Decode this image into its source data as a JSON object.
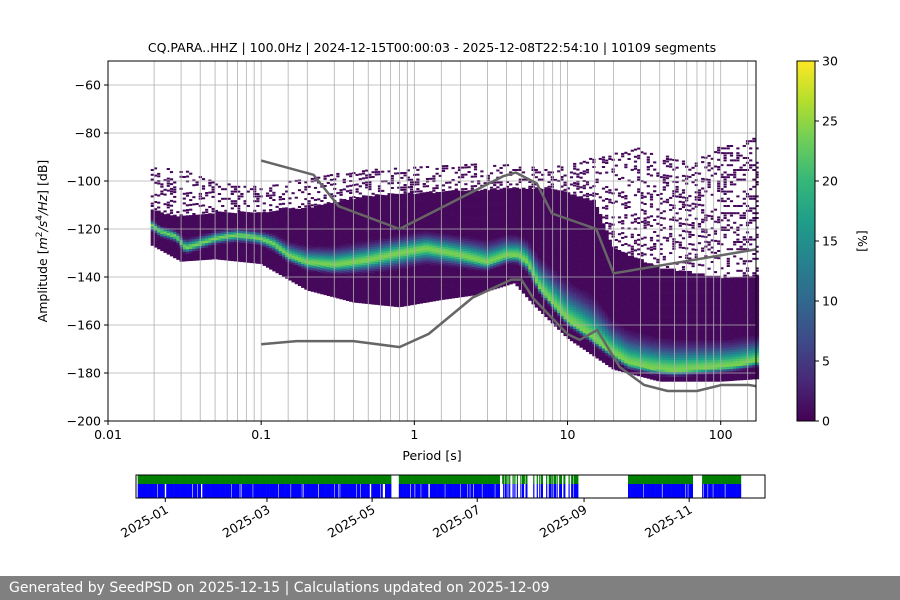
{
  "chart_data": {
    "type": "heatmap",
    "title": "CQ.PARA..HHZ | 100.0Hz | 2024-12-15T00:00:03 - 2025-12-08T22:54:10 | 10109 segments",
    "xlabel": "Period [s]",
    "ylabel_parts": [
      "Amplitude [",
      "m",
      "2",
      "/s",
      "4",
      "/Hz",
      "] [dB]"
    ],
    "xscale": "log",
    "xlim": [
      0.01,
      170
    ],
    "ylim": [
      -200,
      -50
    ],
    "x_ticks": [
      {
        "v": 0.01,
        "label": "0.01"
      },
      {
        "v": 0.1,
        "label": "0.1"
      },
      {
        "v": 1,
        "label": "1"
      },
      {
        "v": 10,
        "label": "10"
      },
      {
        "v": 100,
        "label": "100"
      }
    ],
    "y_ticks": [
      -60,
      -80,
      -100,
      -120,
      -140,
      -160,
      -180,
      -200
    ],
    "period_gridlines": [
      0.02,
      0.03,
      0.04,
      0.05,
      0.06,
      0.07,
      0.08,
      0.09,
      0.1,
      0.15,
      0.2,
      0.3,
      0.4,
      0.5,
      0.6,
      0.7,
      0.8,
      0.9,
      1,
      1.5,
      2,
      3,
      4,
      5,
      6,
      7,
      8,
      9,
      10,
      15,
      20,
      30,
      40,
      50,
      60,
      70,
      80,
      90,
      100,
      150
    ],
    "colorbar": {
      "label": "[%]",
      "min": 0,
      "max": 30,
      "ticks": [
        0,
        5,
        10,
        15,
        20,
        25,
        30
      ],
      "colormap": "viridis"
    },
    "mode_curve": [
      [
        0.019,
        -118
      ],
      [
        0.022,
        -121
      ],
      [
        0.025,
        -122
      ],
      [
        0.028,
        -123
      ],
      [
        0.032,
        -128
      ],
      [
        0.036,
        -127
      ],
      [
        0.04,
        -126
      ],
      [
        0.05,
        -124
      ],
      [
        0.06,
        -123
      ],
      [
        0.07,
        -122.5
      ],
      [
        0.085,
        -123
      ],
      [
        0.1,
        -124
      ],
      [
        0.12,
        -126
      ],
      [
        0.15,
        -131
      ],
      [
        0.2,
        -134
      ],
      [
        0.3,
        -135
      ],
      [
        0.5,
        -133
      ],
      [
        0.8,
        -130
      ],
      [
        1.2,
        -128
      ],
      [
        2,
        -131
      ],
      [
        3,
        -134
      ],
      [
        4,
        -131
      ],
      [
        4.8,
        -131
      ],
      [
        5.5,
        -134
      ],
      [
        6.5,
        -144
      ],
      [
        8,
        -151
      ],
      [
        10,
        -158
      ],
      [
        13,
        -163
      ],
      [
        18,
        -170
      ],
      [
        25,
        -176
      ],
      [
        35,
        -178
      ],
      [
        50,
        -179
      ],
      [
        80,
        -178
      ],
      [
        120,
        -177
      ],
      [
        170,
        -175
      ]
    ],
    "spread_lower": [
      [
        0.019,
        -126
      ],
      [
        0.03,
        -133
      ],
      [
        0.05,
        -132
      ],
      [
        0.1,
        -134
      ],
      [
        0.2,
        -145
      ],
      [
        0.4,
        -150
      ],
      [
        0.8,
        -152
      ],
      [
        1.5,
        -149
      ],
      [
        2.5,
        -147
      ],
      [
        4.5,
        -142
      ],
      [
        6,
        -151
      ],
      [
        10,
        -165
      ],
      [
        20,
        -178
      ],
      [
        40,
        -183
      ],
      [
        100,
        -183
      ],
      [
        170,
        -182
      ]
    ],
    "spread_upper": [
      [
        0.019,
        -112
      ],
      [
        0.03,
        -115
      ],
      [
        0.05,
        -113
      ],
      [
        0.1,
        -113
      ],
      [
        0.2,
        -111
      ],
      [
        0.5,
        -106
      ],
      [
        1,
        -105
      ],
      [
        2,
        -104
      ],
      [
        4,
        -103
      ],
      [
        5,
        -103
      ],
      [
        8,
        -103
      ],
      [
        15,
        -108
      ],
      [
        20,
        -128
      ],
      [
        40,
        -136
      ],
      [
        100,
        -140
      ],
      [
        170,
        -140
      ]
    ],
    "outlier_upper": [
      [
        0.019,
        -93
      ],
      [
        0.03,
        -95
      ],
      [
        0.05,
        -100
      ],
      [
        0.1,
        -102
      ],
      [
        0.2,
        -98
      ],
      [
        0.5,
        -95
      ],
      [
        1,
        -93
      ],
      [
        3,
        -92
      ],
      [
        6,
        -94
      ],
      [
        10,
        -92
      ],
      [
        20,
        -88
      ],
      [
        30,
        -85
      ],
      [
        60,
        -92
      ],
      [
        100,
        -85
      ],
      [
        170,
        -80
      ]
    ],
    "nhnm": [
      [
        0.1,
        -91.5
      ],
      [
        0.22,
        -97.4
      ],
      [
        0.32,
        -110.5
      ],
      [
        0.8,
        -120
      ],
      [
        3.8,
        -98
      ],
      [
        4.6,
        -96.5
      ],
      [
        6.3,
        -101
      ],
      [
        7.9,
        -113.5
      ],
      [
        15.4,
        -120
      ],
      [
        20,
        -138.5
      ],
      [
        170,
        -128.5
      ]
    ],
    "nlnm": [
      [
        0.1,
        -168
      ],
      [
        0.17,
        -166.7
      ],
      [
        0.4,
        -166.7
      ],
      [
        0.8,
        -169.2
      ],
      [
        1.24,
        -163.7
      ],
      [
        2.4,
        -148.6
      ],
      [
        4.3,
        -141.1
      ],
      [
        5,
        -141.1
      ],
      [
        6,
        -149
      ],
      [
        10,
        -163.8
      ],
      [
        12,
        -166.2
      ],
      [
        15.6,
        -162.1
      ],
      [
        21.9,
        -177.5
      ],
      [
        31.6,
        -185
      ],
      [
        45,
        -187.5
      ],
      [
        70,
        -187.5
      ],
      [
        101,
        -185
      ],
      [
        154,
        -185
      ],
      [
        170,
        -185.5
      ]
    ],
    "availability": {
      "date_ticks": [
        "2025-01",
        "2025-03",
        "2025-05",
        "2025-07",
        "2025-09",
        "2025-11"
      ],
      "range": [
        "2024-12-15",
        "2025-12-15"
      ],
      "colors": {
        "green": "#008000",
        "blue": "#0000ff"
      }
    }
  },
  "footer": {
    "text": "Generated by SeedPSD on 2025-12-15 | Calculations updated on 2025-12-09"
  }
}
